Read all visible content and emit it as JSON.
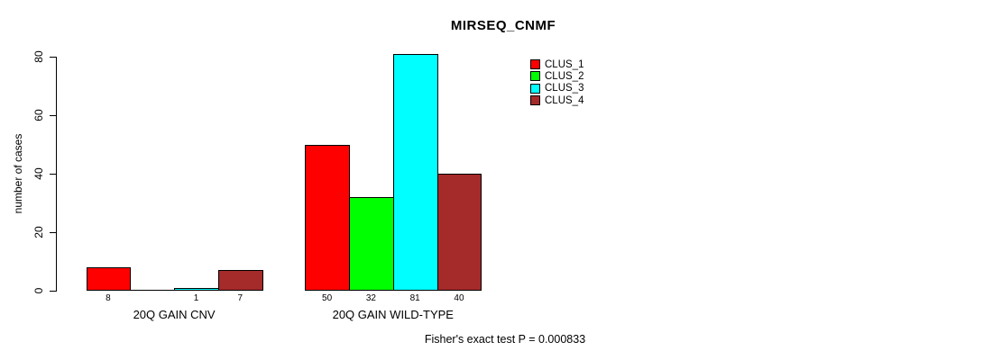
{
  "chart_data": {
    "type": "bar",
    "title": "MIRSEQ_CNMF",
    "ylabel": "number of cases",
    "xlabel": "",
    "ylim": [
      0,
      80
    ],
    "y_ticks": [
      0,
      20,
      40,
      60,
      80
    ],
    "grid": false,
    "legend_position": "top-right",
    "series": [
      {
        "name": "CLUS_1",
        "color": "#FF0000",
        "values": [
          8,
          50
        ]
      },
      {
        "name": "CLUS_2",
        "color": "#00FF00",
        "values": [
          0,
          32
        ]
      },
      {
        "name": "CLUS_3",
        "color": "#00FFFF",
        "values": [
          1,
          81
        ]
      },
      {
        "name": "CLUS_4",
        "color": "#A52A2A",
        "values": [
          7,
          40
        ]
      }
    ],
    "groups": [
      {
        "label": "20Q GAIN CNV",
        "values": [
          8,
          0,
          1,
          7
        ],
        "bar_labels": [
          "8",
          "",
          "1",
          "7"
        ]
      },
      {
        "label": "20Q GAIN WILD-TYPE",
        "values": [
          50,
          32,
          81,
          40
        ],
        "bar_labels": [
          "50",
          "32",
          "81",
          "40"
        ]
      }
    ],
    "footer": "Fisher's exact test P = 0.000833"
  }
}
